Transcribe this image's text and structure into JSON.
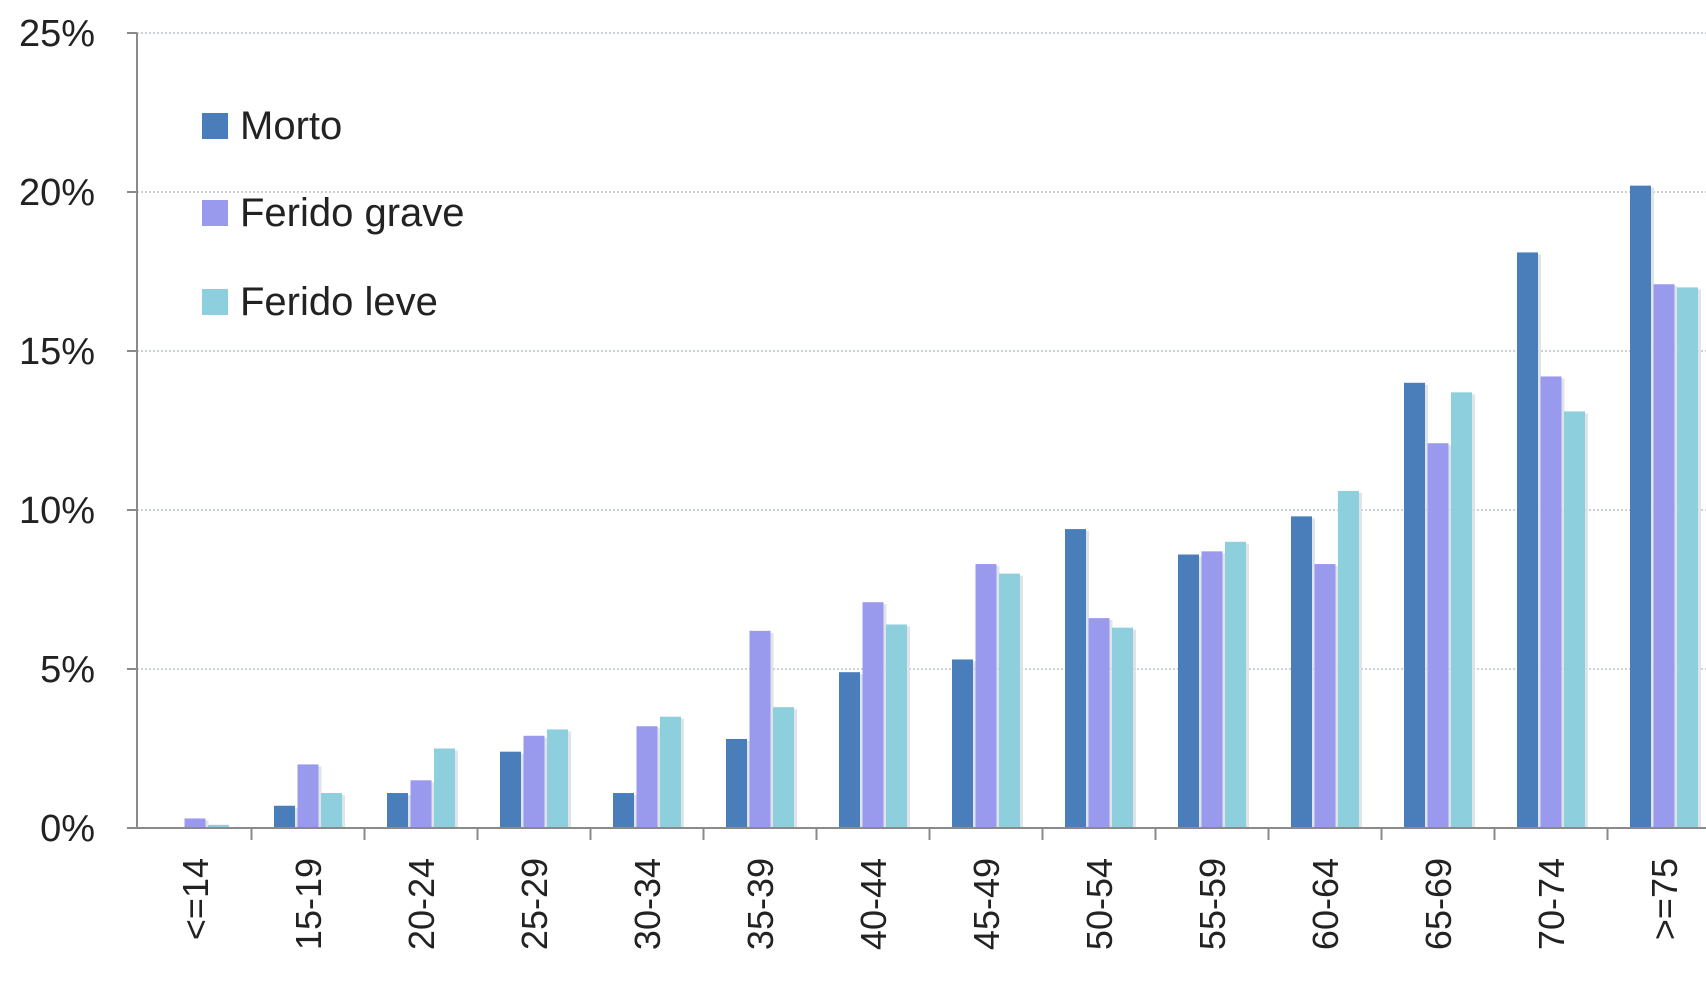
{
  "chart_data": {
    "type": "bar",
    "title": "",
    "xlabel": "",
    "ylabel": "",
    "ylim": [
      0,
      25
    ],
    "yticks": [
      "0%",
      "5%",
      "10%",
      "15%",
      "20%",
      "25%"
    ],
    "y_unit": "%",
    "grid": true,
    "legend_position": "top-left",
    "categories": [
      "<=14",
      "15-19",
      "20-24",
      "25-29",
      "30-34",
      "35-39",
      "40-44",
      "45-49",
      "50-54",
      "55-59",
      "60-64",
      "65-69",
      "70-74",
      ">=75"
    ],
    "series": [
      {
        "name": "Morto",
        "color": "#4a7ebb",
        "values": [
          0.0,
          0.7,
          1.1,
          2.4,
          1.1,
          2.8,
          4.9,
          5.3,
          9.4,
          8.6,
          9.8,
          14.0,
          18.1,
          20.2
        ]
      },
      {
        "name": "Ferido grave",
        "color": "#9999ee",
        "values": [
          0.3,
          2.0,
          1.5,
          2.9,
          3.2,
          6.2,
          7.1,
          8.3,
          6.6,
          8.7,
          8.3,
          12.1,
          14.2,
          17.1
        ]
      },
      {
        "name": "Ferido leve",
        "color": "#8ecfdd",
        "values": [
          0.1,
          1.1,
          2.5,
          3.1,
          3.5,
          3.8,
          6.4,
          8.0,
          6.3,
          9.0,
          10.6,
          13.7,
          13.1,
          17.0
        ]
      }
    ]
  }
}
